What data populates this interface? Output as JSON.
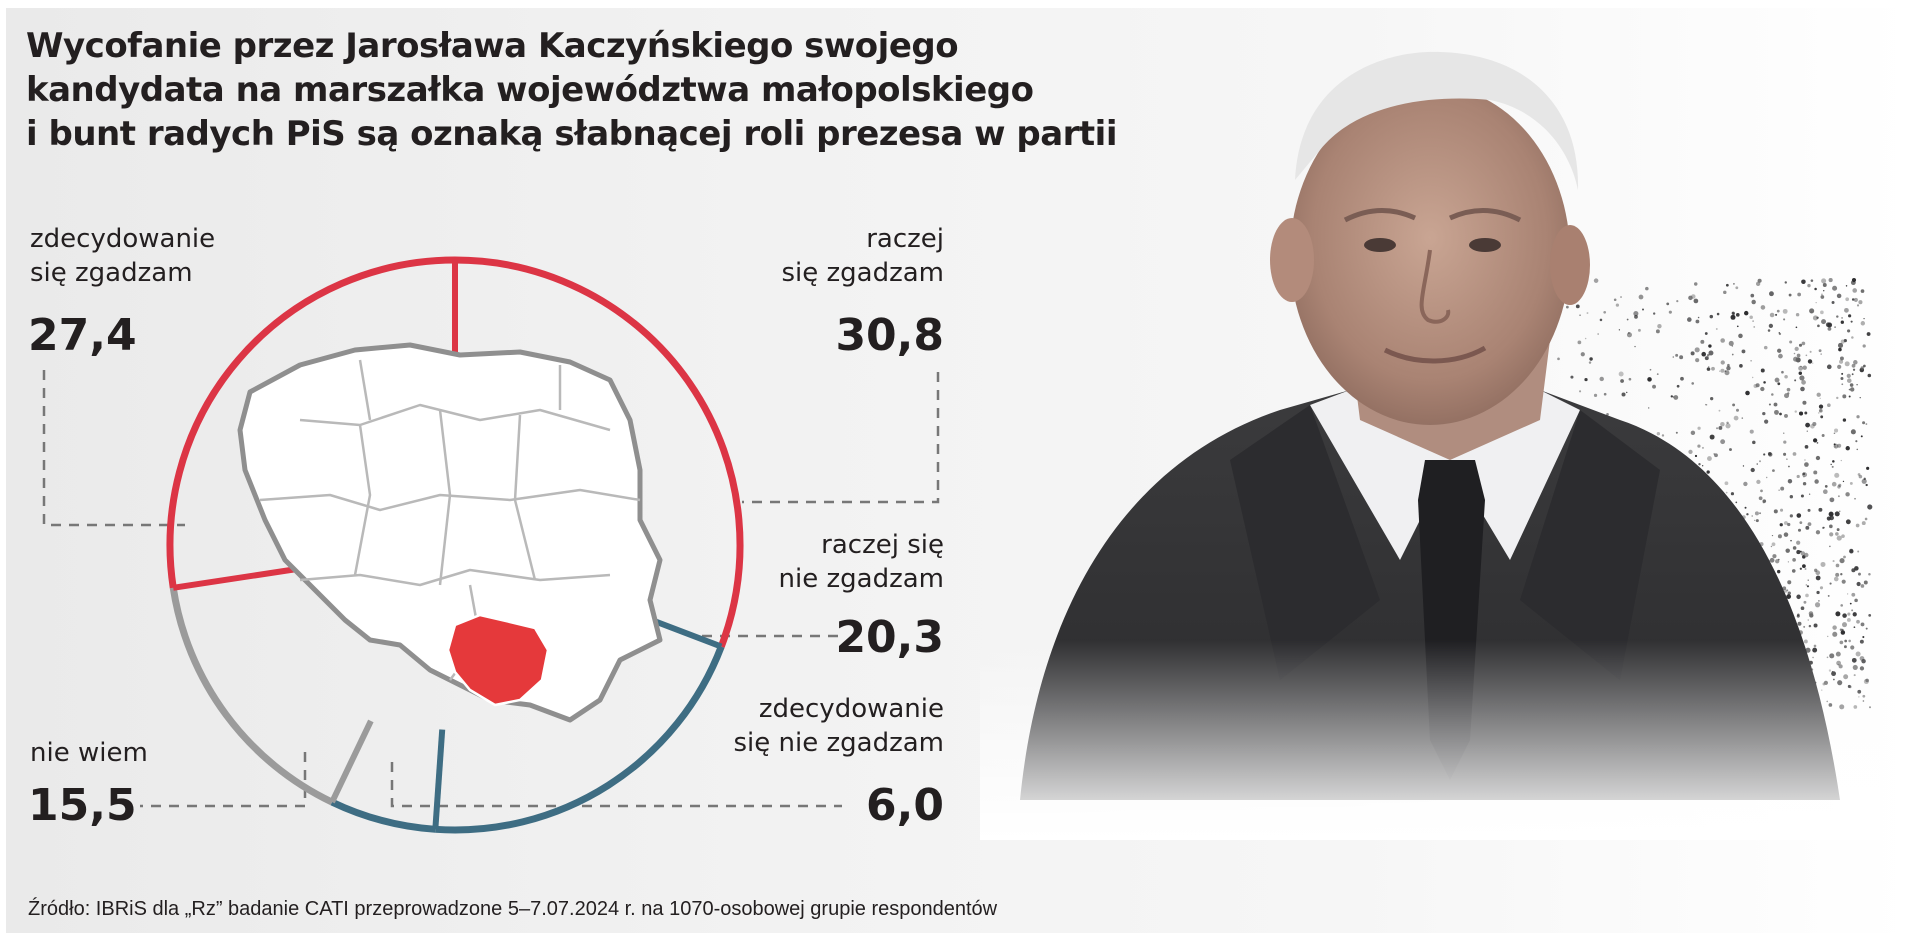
{
  "title_lines": [
    "Wycofanie przez Jarosława Kaczyńskiego swojego",
    "kandydata  na marszałka województwa małopolskiego",
    "i bunt radych PiS są oznaką słabnącej roli prezesa w partii"
  ],
  "source": "Źródło: IBRiS dla „Rz” badanie CATI przeprowadzone 5–7.07.2024 r. na 1070-osobowej grupie respondentów",
  "colors": {
    "agree": "#dc3545",
    "disagree": "#3e6d83",
    "dont_know": "#9b9b9b",
    "region_highlight": "#e5393b"
  },
  "chart_data": {
    "type": "pie",
    "unit": "%",
    "slices": [
      {
        "label_lines": [
          "raczej",
          "się zgadzam"
        ],
        "value": "30,8",
        "group": "agree"
      },
      {
        "label_lines": [
          "raczej się",
          "nie zgadzam"
        ],
        "value": "20,3",
        "group": "disagree"
      },
      {
        "label_lines": [
          "zdecydowanie",
          "się nie zgadzam"
        ],
        "value": "6,0",
        "group": "disagree"
      },
      {
        "label_lines": [
          "nie wiem"
        ],
        "value": "15,5",
        "group": "dont_know"
      },
      {
        "label_lines": [
          "zdecydowanie",
          "się zgadzam"
        ],
        "value": "27,4",
        "group": "agree"
      }
    ]
  }
}
